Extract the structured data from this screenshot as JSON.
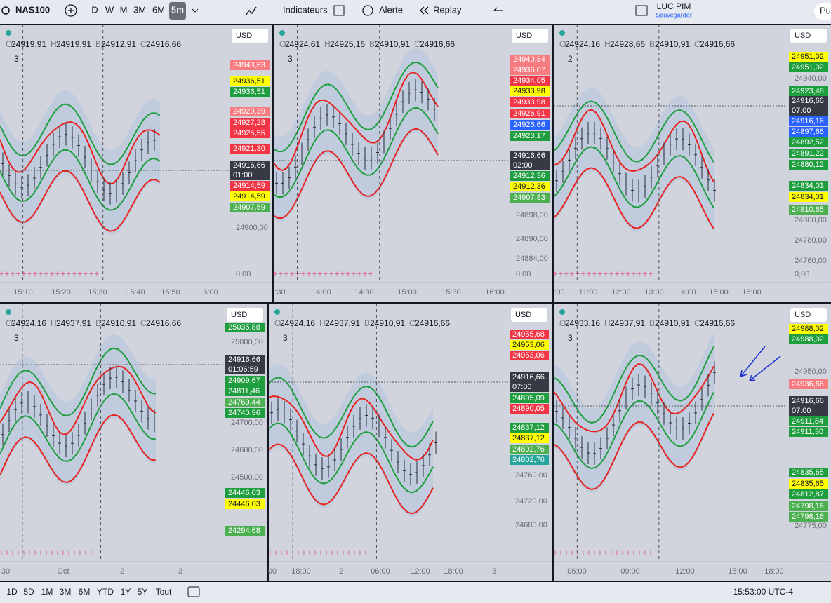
{
  "toolbar": {
    "symbol": "NAS100",
    "intervals": [
      "D",
      "W",
      "M",
      "3M",
      "6M",
      "5m"
    ],
    "indicators": "Indicateurs",
    "alert": "Alerte",
    "replay": "Replay",
    "account": "LUC PIM",
    "save": "Sauvegarder",
    "publish": "Pu"
  },
  "ohlc_letters": [
    "O",
    "H",
    "B",
    "C"
  ],
  "panels": [
    {
      "ohlc": [
        "24919,91",
        "24919,91",
        "24912,91",
        "24916,66"
      ],
      "count": "3",
      "currency": "USD",
      "labels": [
        {
          "price": "24943,63",
          "color": "#f77c80"
        },
        {
          "price": "24936,51",
          "color": "#ffff00"
        },
        {
          "price": "24936,51",
          "color": "#1e9e3e"
        },
        {
          "price": "24929,39",
          "color": "#f77c80"
        },
        {
          "price": "24927,28",
          "color": "#f23645"
        },
        {
          "price": "24925,55",
          "color": "#f23645"
        },
        {
          "price": "24921,30",
          "color": "#f23645"
        },
        {
          "price": "24916,66",
          "time": "01:00",
          "color": "#363a45"
        },
        {
          "price": "24914,59",
          "color": "#f23645"
        },
        {
          "price": "24914,59",
          "color": "#ffff00"
        },
        {
          "price": "24907,59",
          "color": "#4caf50"
        }
      ],
      "ticks": [
        "24900,00"
      ],
      "zero": "0,00",
      "times": [
        "15:10",
        "15:20",
        "15:30",
        "15:40",
        "15:50",
        "16:00"
      ]
    },
    {
      "ohlc": [
        "24924,61",
        "24925,16",
        "24910,91",
        "24916,66"
      ],
      "count": "3",
      "currency": "USD",
      "labels": [
        {
          "price": "24940,84",
          "color": "#f77c80"
        },
        {
          "price": "24936,07",
          "color": "#f77c80"
        },
        {
          "price": "24934,05",
          "color": "#f23645"
        },
        {
          "price": "24933,98",
          "color": "#ffff00"
        },
        {
          "price": "24933,98",
          "color": "#f23645"
        },
        {
          "price": "24926,91",
          "color": "#f23645"
        },
        {
          "price": "24926,66",
          "color": "#2962ff"
        },
        {
          "price": "24923,17",
          "color": "#1e9e3e"
        },
        {
          "price": "24916,66",
          "time": "02:00",
          "color": "#363a45"
        },
        {
          "price": "24912,36",
          "color": "#1e9e3e"
        },
        {
          "price": "24912,36",
          "color": "#ffff00"
        },
        {
          "price": "24907,83",
          "color": "#4caf50"
        }
      ],
      "ticks": [
        "24898,00",
        "24890,00",
        "24884,00"
      ],
      "zero": "0,00",
      "times": [
        ":30",
        "14:00",
        "14:30",
        "15:00",
        "15:30",
        "16:00"
      ]
    },
    {
      "ohlc": [
        "24924,16",
        "24928,66",
        "24910,91",
        "24916,66"
      ],
      "count": "2",
      "currency": "USD",
      "labels": [
        {
          "price": "24951,02",
          "color": "#ffff00"
        },
        {
          "price": "24951,02",
          "color": "#1e9e3e"
        },
        {
          "price": "24923,48",
          "color": "#1e9e3e"
        },
        {
          "price": "24916,66",
          "time": "07:00",
          "color": "#363a45"
        },
        {
          "price": "24916,16",
          "color": "#2962ff"
        },
        {
          "price": "24897,66",
          "color": "#2962ff"
        },
        {
          "price": "24892,52",
          "color": "#1e9e3e"
        },
        {
          "price": "24891,22",
          "color": "#1e9e3e"
        },
        {
          "price": "24880,12",
          "color": "#1e9e3e"
        },
        {
          "price": "24834,01",
          "color": "#1e9e3e"
        },
        {
          "price": "24834,01",
          "color": "#ffff00"
        },
        {
          "price": "24810,65",
          "color": "#4caf50"
        }
      ],
      "ticks": [
        "24940,00",
        "24800,00",
        "24780,00",
        "24760,00"
      ],
      "zero": "0,00",
      "times": [
        ":00",
        "11:00",
        "12:00",
        "13:00",
        "14:00",
        "15:00",
        "16:00"
      ]
    },
    {
      "ohlc": [
        "24924,16",
        "24937,91",
        "24910,91",
        "24916,66"
      ],
      "count": "3",
      "currency": "USD",
      "labels": [
        {
          "price": "25035,88",
          "color": "#1e9e3e"
        },
        {
          "price": "24916,66",
          "time": "01:06:59",
          "color": "#363a45"
        },
        {
          "price": "24909,67",
          "color": "#1e9e3e"
        },
        {
          "price": "24811,46",
          "color": "#1e9e3e"
        },
        {
          "price": "24769,44",
          "color": "#4caf50"
        },
        {
          "price": "24740,96",
          "color": "#1e9e3e"
        },
        {
          "price": "24446,03",
          "color": "#1e9e3e"
        },
        {
          "price": "24446,03",
          "color": "#ffff00"
        },
        {
          "price": "24294,68",
          "color": "#4caf50"
        }
      ],
      "ticks": [
        "25000,00",
        "24700,00",
        "24600,00",
        "24500,00"
      ],
      "times": [
        "30",
        "Oct",
        "2",
        "3"
      ]
    },
    {
      "ohlc": [
        "24924,16",
        "24937,91",
        "24910,91",
        "24916,66"
      ],
      "count": "3",
      "currency": "USD",
      "labels": [
        {
          "price": "24955,68",
          "color": "#f23645"
        },
        {
          "price": "24953,06",
          "color": "#ffff00"
        },
        {
          "price": "24953,06",
          "color": "#f23645"
        },
        {
          "price": "24916,66",
          "time": "07:00",
          "color": "#363a45"
        },
        {
          "price": "24895,09",
          "color": "#1e9e3e"
        },
        {
          "price": "24890,05",
          "color": "#f23645"
        },
        {
          "price": "24837,12",
          "color": "#1e9e3e"
        },
        {
          "price": "24837,12",
          "color": "#ffff00"
        },
        {
          "price": "24802,76",
          "color": "#4caf50"
        },
        {
          "price": "24802,76",
          "color": "#26a69a"
        }
      ],
      "ticks": [
        "24760,00",
        "24720,00",
        "24680,00"
      ],
      "times": [
        "00",
        "18:00",
        "2",
        "06:00",
        "12:00",
        "18:00",
        "3"
      ]
    },
    {
      "ohlc": [
        "24933,16",
        "24937,91",
        "24910,91",
        "24916,66"
      ],
      "count": "3",
      "currency": "USD",
      "labels": [
        {
          "price": "24988,02",
          "color": "#ffff00"
        },
        {
          "price": "24988,02",
          "color": "#1e9e3e"
        },
        {
          "price": "24936,66",
          "color": "#f77c80"
        },
        {
          "price": "24916,66",
          "time": "07:00",
          "color": "#363a45"
        },
        {
          "price": "24911,84",
          "color": "#1e9e3e"
        },
        {
          "price": "24911,30",
          "color": "#1e9e3e"
        },
        {
          "price": "24835,65",
          "color": "#1e9e3e"
        },
        {
          "price": "24835,65",
          "color": "#ffff00"
        },
        {
          "price": "24812,87",
          "color": "#1e9e3e"
        },
        {
          "price": "24798,16",
          "color": "#4caf50"
        },
        {
          "price": "24798,16",
          "color": "#4caf50"
        }
      ],
      "ticks": [
        "24950,00",
        "24775,00"
      ],
      "times": [
        "06:00",
        "09:00",
        "12:00",
        "15:00",
        "18:00"
      ]
    }
  ],
  "bottombar": {
    "ranges": [
      "1D",
      "5D",
      "1M",
      "3M",
      "6M",
      "YTD",
      "1Y",
      "5Y",
      "Tout"
    ],
    "clock": "15:53:00 UTC-4"
  }
}
